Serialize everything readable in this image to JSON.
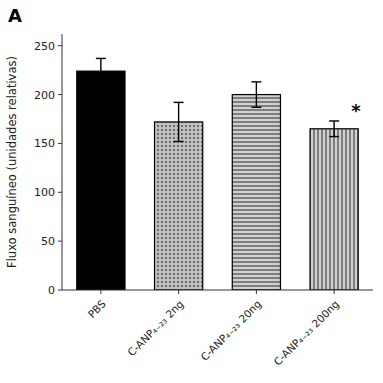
{
  "chart_data": {
    "type": "bar",
    "title": "A",
    "categories": [
      "PBS",
      "C-ANP₄₋₂₃ 2ng",
      "C-ANP₄₋₂₃ 20ng",
      "C-ANP₄₋₂₃ 200ng"
    ],
    "values": [
      224,
      172,
      200,
      165
    ],
    "errors": [
      13,
      20,
      13,
      8
    ],
    "colors": [
      "#000000",
      "#c0c0c0",
      "#d0d0d0",
      "#d0d0d0"
    ],
    "ylabel": "Fluxo sanguíneo (unidades relativas)",
    "ylim": [
      0,
      262
    ],
    "yticks": [
      0,
      50,
      100,
      150,
      200,
      250
    ],
    "grid": false,
    "annotations": [
      {
        "text": "*",
        "category": "C-ANP₄₋₂₃ 200ng"
      }
    ]
  }
}
